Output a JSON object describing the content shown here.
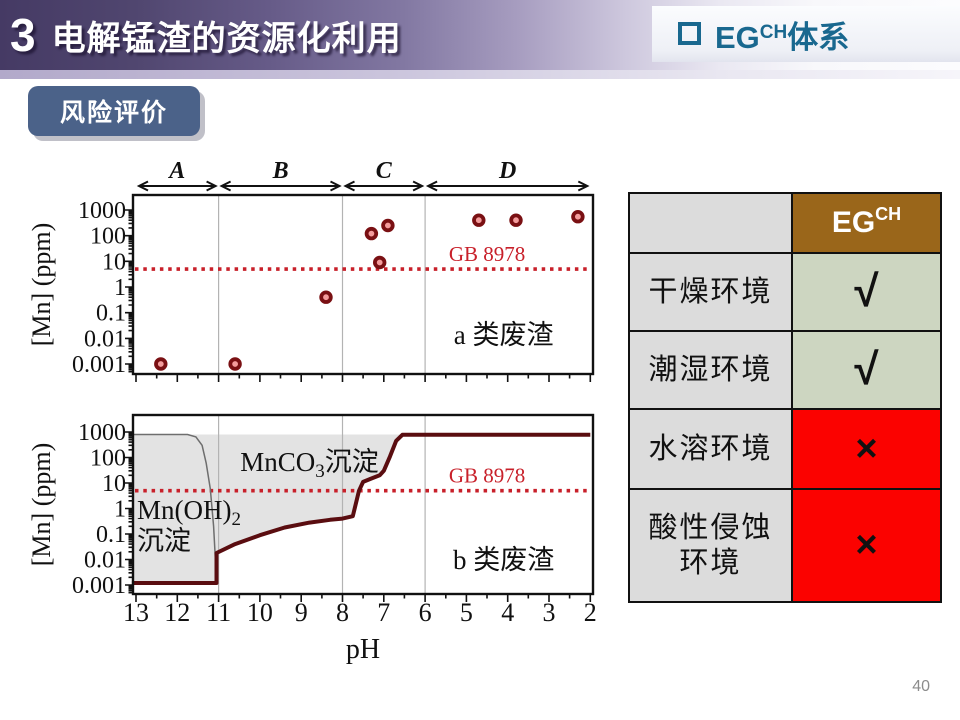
{
  "slide": {
    "section_number": "3",
    "title": "电解锰渣的资源化利用",
    "corner_label": {
      "main": "EG",
      "sup": "CH",
      "rest": "体系"
    },
    "badge_label": "风险评价",
    "page_number": "40",
    "accent_colors": {
      "header_gradient_dark": "#453a64",
      "corner_text": "#19688f",
      "badge_bg": "#4b6289"
    }
  },
  "table": {
    "col_header": {
      "main": "EG",
      "sup": "CH"
    },
    "rows": [
      {
        "label": "干燥环境",
        "label_line2": "",
        "result": "√",
        "status": "pass"
      },
      {
        "label": "潮湿环境",
        "label_line2": "",
        "result": "√",
        "status": "pass"
      },
      {
        "label": "水溶环境",
        "label_line2": "",
        "result": "×",
        "status": "fail"
      },
      {
        "label": "酸性侵蚀",
        "label_line2": "环境",
        "result": "×",
        "status": "fail"
      }
    ],
    "colors": {
      "header_bg": "#9a661a",
      "pass_bg": "#cdd6c1",
      "fail_bg": "#fb0200",
      "label_bg": "#dcdcdc"
    }
  },
  "chart_data": [
    {
      "type": "scatter",
      "name": "a-type-slag-leaching",
      "ylabel": "[Mn] (ppm)",
      "xlabel": "",
      "x_axis": {
        "min": 13,
        "max": 2,
        "reversed": true,
        "shared_with_bottom": true
      },
      "y_axis": {
        "log": true,
        "ticks": [
          "1000",
          "100",
          "10",
          "1",
          "0.1",
          "0.01",
          "0.001"
        ]
      },
      "regions": [
        {
          "label": "A",
          "from_ph": 13,
          "to_ph": 11
        },
        {
          "label": "B",
          "from_ph": 11,
          "to_ph": 8
        },
        {
          "label": "C",
          "from_ph": 8,
          "to_ph": 6
        },
        {
          "label": "D",
          "from_ph": 6,
          "to_ph": 2
        }
      ],
      "boundary_gridlines_ph": [
        11,
        8,
        6
      ],
      "threshold": {
        "label": "GB 8978",
        "value_ppm": 5,
        "color": "#c8202a"
      },
      "annotation": "a 类废渣",
      "points": [
        {
          "ph": 12.4,
          "mn_ppm": 0.001
        },
        {
          "ph": 10.6,
          "mn_ppm": 0.001
        },
        {
          "ph": 8.4,
          "mn_ppm": 0.4
        },
        {
          "ph": 7.3,
          "mn_ppm": 120
        },
        {
          "ph": 7.1,
          "mn_ppm": 9
        },
        {
          "ph": 6.9,
          "mn_ppm": 250
        },
        {
          "ph": 4.7,
          "mn_ppm": 400
        },
        {
          "ph": 3.8,
          "mn_ppm": 400
        },
        {
          "ph": 2.3,
          "mn_ppm": 550
        }
      ],
      "point_colors": {
        "ring": "#7a1013",
        "fill": "#f49c9c"
      }
    },
    {
      "type": "line",
      "name": "b-type-slag-solubility",
      "ylabel": "[Mn] (ppm)",
      "xlabel": "pH",
      "x_axis": {
        "min": 13,
        "max": 2,
        "reversed": true,
        "ticks": [
          13,
          12,
          11,
          10,
          9,
          8,
          7,
          6,
          5,
          4,
          3,
          2
        ]
      },
      "y_axis": {
        "log": true,
        "ticks": [
          "1000",
          "100",
          "10",
          "1",
          "0.1",
          "0.01",
          "0.001"
        ]
      },
      "boundary_gridlines_ph": [
        11,
        8,
        6
      ],
      "threshold": {
        "label": "GB 8978",
        "value_ppm": 5,
        "color": "#c8202a"
      },
      "annotation": "b 类废渣",
      "area_label": {
        "pre": "MnCO",
        "sub": "3",
        "post": "沉淀"
      },
      "left_label": {
        "pre": "Mn(OH)",
        "sub": "2",
        "post": "",
        "line2": "沉淀"
      },
      "series": [
        {
          "name": "mn-solubility-curve",
          "color": "#5a0d10",
          "width": 4,
          "points": [
            [
              13.1,
              0.0012
            ],
            [
              11.05,
              0.0012
            ],
            [
              11.05,
              0.018
            ],
            [
              10.6,
              0.04
            ],
            [
              10,
              0.09
            ],
            [
              9.4,
              0.18
            ],
            [
              8.8,
              0.28
            ],
            [
              8.3,
              0.36
            ],
            [
              8,
              0.4
            ],
            [
              7.75,
              0.5
            ],
            [
              7.6,
              5
            ],
            [
              7.5,
              11
            ],
            [
              7.3,
              15
            ],
            [
              7.1,
              20
            ],
            [
              7,
              30
            ],
            [
              6.85,
              110
            ],
            [
              6.7,
              450
            ],
            [
              6.55,
              780
            ],
            [
              6.3,
              780
            ],
            [
              2,
              780
            ]
          ]
        },
        {
          "name": "mnoh2-boundary-curve",
          "color": "#6e6e6e",
          "width": 1.5,
          "points": [
            [
              13.1,
              800
            ],
            [
              11.75,
              800
            ],
            [
              11.55,
              640
            ],
            [
              11.4,
              300
            ],
            [
              11.3,
              60
            ],
            [
              11.2,
              6
            ],
            [
              11.12,
              0.2
            ],
            [
              11.06,
              0.003
            ],
            [
              11.05,
              0.0012
            ]
          ]
        }
      ],
      "shaded_area_color": "#e3e3e3",
      "shaded_area_top_ppm": 800
    }
  ]
}
